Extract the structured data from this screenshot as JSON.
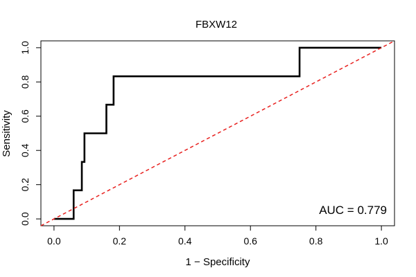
{
  "chart_data": {
    "type": "line",
    "title": "FBXW12",
    "xlabel": "1 − Specificity",
    "ylabel": "Sensitivity",
    "xlim": [
      -0.04,
      1.04
    ],
    "ylim": [
      -0.04,
      1.04
    ],
    "x_ticks": [
      0,
      0.2,
      0.4,
      0.6,
      0.8,
      1
    ],
    "x_tick_labels": [
      "0.0",
      "0.2",
      "0.4",
      "0.6",
      "0.8",
      "1.0"
    ],
    "y_ticks": [
      0,
      0.2,
      0.4,
      0.6,
      0.8,
      1
    ],
    "y_tick_labels": [
      "0.0",
      "0.2",
      "0.4",
      "0.6",
      "0.8",
      "1.0"
    ],
    "grid": false,
    "series": [
      {
        "style": "solid",
        "color": "#000000",
        "x": [
          0,
          0.06,
          0.06,
          0.085,
          0.085,
          0.093,
          0.093,
          0.16,
          0.16,
          0.182,
          0.182,
          0.75,
          0.75,
          1.0
        ],
        "y": [
          0,
          0,
          0.167,
          0.167,
          0.333,
          0.333,
          0.5,
          0.5,
          0.667,
          0.667,
          0.833,
          0.833,
          1.0,
          1.0
        ]
      },
      {
        "style": "dashed",
        "color": "#e8201e",
        "x": [
          -0.04,
          1.04
        ],
        "y": [
          -0.04,
          1.04
        ]
      }
    ],
    "annotation": "AUC = 0.779"
  }
}
